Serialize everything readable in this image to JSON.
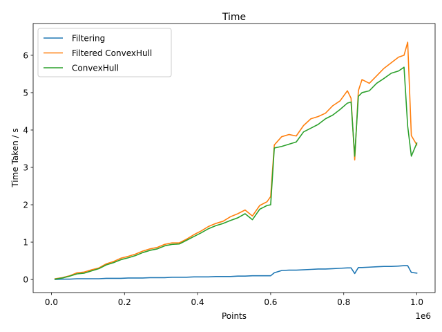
{
  "chart_data": {
    "type": "line",
    "title": "Time",
    "xlabel": "Points",
    "ylabel": "Time Taken / s",
    "x_offset_label": "1e6",
    "xlim": [
      -50000,
      1050000
    ],
    "ylim": [
      -0.35,
      6.85
    ],
    "xticks": [
      0,
      200000,
      400000,
      600000,
      800000,
      1000000
    ],
    "xtick_labels": [
      "0.0",
      "0.2",
      "0.4",
      "0.6",
      "0.8",
      "1.0"
    ],
    "yticks": [
      0,
      1,
      2,
      3,
      4,
      5,
      6
    ],
    "ytick_labels": [
      "0",
      "1",
      "2",
      "3",
      "4",
      "5",
      "6"
    ],
    "grid": false,
    "legend_position": "upper-left",
    "x": [
      10000,
      30000,
      50000,
      70000,
      90000,
      110000,
      130000,
      150000,
      170000,
      190000,
      210000,
      230000,
      250000,
      270000,
      290000,
      310000,
      330000,
      350000,
      370000,
      390000,
      410000,
      430000,
      450000,
      470000,
      490000,
      510000,
      530000,
      550000,
      570000,
      590000,
      600000,
      610000,
      630000,
      650000,
      670000,
      690000,
      710000,
      730000,
      750000,
      770000,
      790000,
      810000,
      820000,
      830000,
      840000,
      850000,
      870000,
      890000,
      910000,
      930000,
      950000,
      965000,
      975000,
      985000,
      1000000
    ],
    "series": [
      {
        "name": "Filtering",
        "color": "#1f77b4",
        "values": [
          0.0,
          0.01,
          0.01,
          0.02,
          0.02,
          0.02,
          0.02,
          0.03,
          0.03,
          0.03,
          0.04,
          0.04,
          0.04,
          0.05,
          0.05,
          0.05,
          0.06,
          0.06,
          0.06,
          0.07,
          0.07,
          0.07,
          0.08,
          0.08,
          0.08,
          0.09,
          0.09,
          0.1,
          0.1,
          0.1,
          0.1,
          0.18,
          0.24,
          0.25,
          0.25,
          0.26,
          0.27,
          0.28,
          0.28,
          0.29,
          0.3,
          0.31,
          0.31,
          0.16,
          0.32,
          0.32,
          0.33,
          0.34,
          0.35,
          0.35,
          0.36,
          0.37,
          0.37,
          0.19,
          0.17
        ]
      },
      {
        "name": "Filtered ConvexHull",
        "color": "#ff7f0e",
        "values": [
          0.02,
          0.05,
          0.1,
          0.18,
          0.2,
          0.26,
          0.31,
          0.42,
          0.48,
          0.57,
          0.62,
          0.68,
          0.76,
          0.82,
          0.86,
          0.94,
          0.98,
          0.98,
          1.08,
          1.2,
          1.3,
          1.42,
          1.5,
          1.56,
          1.68,
          1.76,
          1.86,
          1.7,
          1.98,
          2.08,
          2.22,
          3.6,
          3.82,
          3.88,
          3.84,
          4.12,
          4.3,
          4.36,
          4.45,
          4.65,
          4.78,
          5.05,
          4.85,
          3.2,
          5.05,
          5.35,
          5.25,
          5.45,
          5.65,
          5.8,
          5.95,
          6.0,
          6.35,
          3.85,
          3.6
        ]
      },
      {
        "name": "ConvexHull",
        "color": "#2ca02c",
        "values": [
          0.01,
          0.04,
          0.09,
          0.15,
          0.17,
          0.23,
          0.29,
          0.39,
          0.45,
          0.53,
          0.58,
          0.64,
          0.72,
          0.78,
          0.82,
          0.9,
          0.94,
          0.95,
          1.05,
          1.15,
          1.25,
          1.36,
          1.44,
          1.5,
          1.58,
          1.65,
          1.76,
          1.6,
          1.88,
          1.98,
          2.0,
          3.52,
          3.56,
          3.62,
          3.68,
          3.95,
          4.05,
          4.15,
          4.3,
          4.4,
          4.55,
          4.72,
          4.75,
          3.3,
          4.9,
          5.0,
          5.05,
          5.25,
          5.38,
          5.52,
          5.58,
          5.68,
          4.1,
          3.3,
          3.65
        ]
      }
    ]
  }
}
